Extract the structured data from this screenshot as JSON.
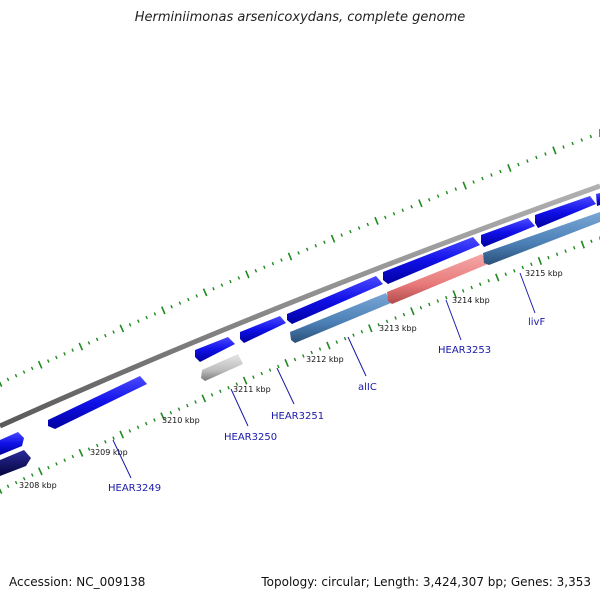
{
  "title": "Herminiimonas arsenicoxydans, complete genome",
  "footer": {
    "accession": "Accession: NC_009138",
    "summary": "Topology: circular; Length: 3,424,307 bp; Genes: 3,353"
  },
  "map": {
    "backbone_color": "#8c8c8c",
    "tick_color": "#1e8a1e",
    "tick_labels": [
      "3208 kbp",
      "3209 kbp",
      "3210 kbp",
      "3211 kbp",
      "3212 kbp",
      "3213 kbp",
      "3214 kbp",
      "3215 kbp"
    ],
    "gene_labels": [
      "HEAR3249",
      "HEAR3250",
      "HEAR3251",
      "alIC",
      "HEAR3253",
      "livF"
    ],
    "feature_colors": {
      "cds_forward": "#1010e8",
      "cds_dark": "#0a0a6e",
      "cds_reverse": "#4a7fb5",
      "rrna": "#e87a7a",
      "pseudo": "#bdbdbd"
    }
  }
}
